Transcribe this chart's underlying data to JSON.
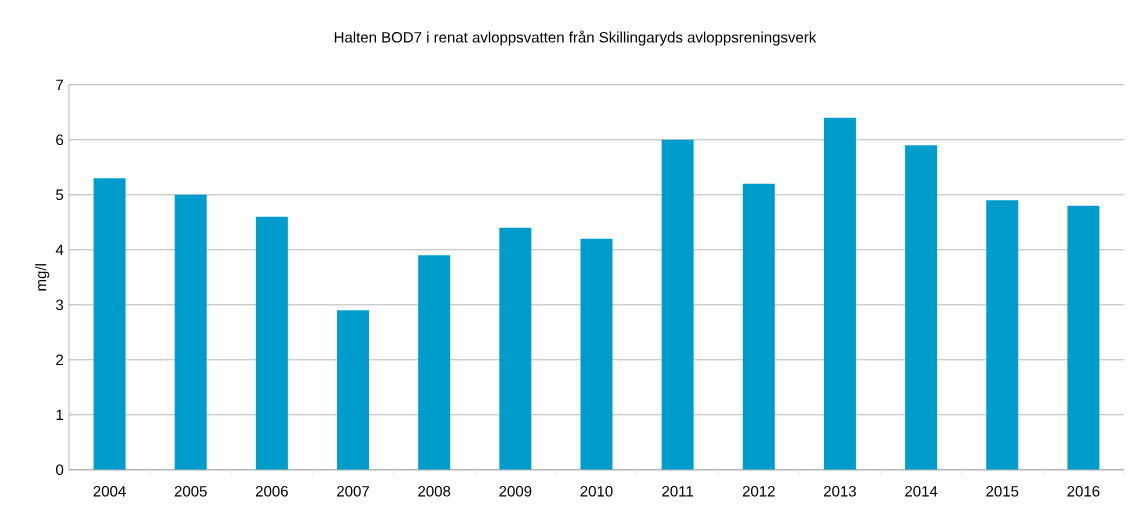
{
  "chart_data": {
    "type": "bar",
    "title": "Halten BOD7 i renat avloppsvatten från Skillingaryds avloppsreningsverk",
    "ylabel": "mg/l",
    "categories": [
      "2004",
      "2005",
      "2006",
      "2007",
      "2008",
      "2009",
      "2010",
      "2011",
      "2012",
      "2013",
      "2014",
      "2015",
      "2016"
    ],
    "values": [
      5.3,
      5.0,
      4.6,
      2.9,
      3.9,
      4.4,
      4.2,
      6.0,
      5.2,
      6.4,
      5.9,
      4.9,
      4.8
    ],
    "color": "#009ccc",
    "ylim": [
      0,
      7
    ],
    "yticks": [
      0,
      1,
      2,
      3,
      4,
      5,
      6,
      7
    ],
    "grid": "y"
  }
}
